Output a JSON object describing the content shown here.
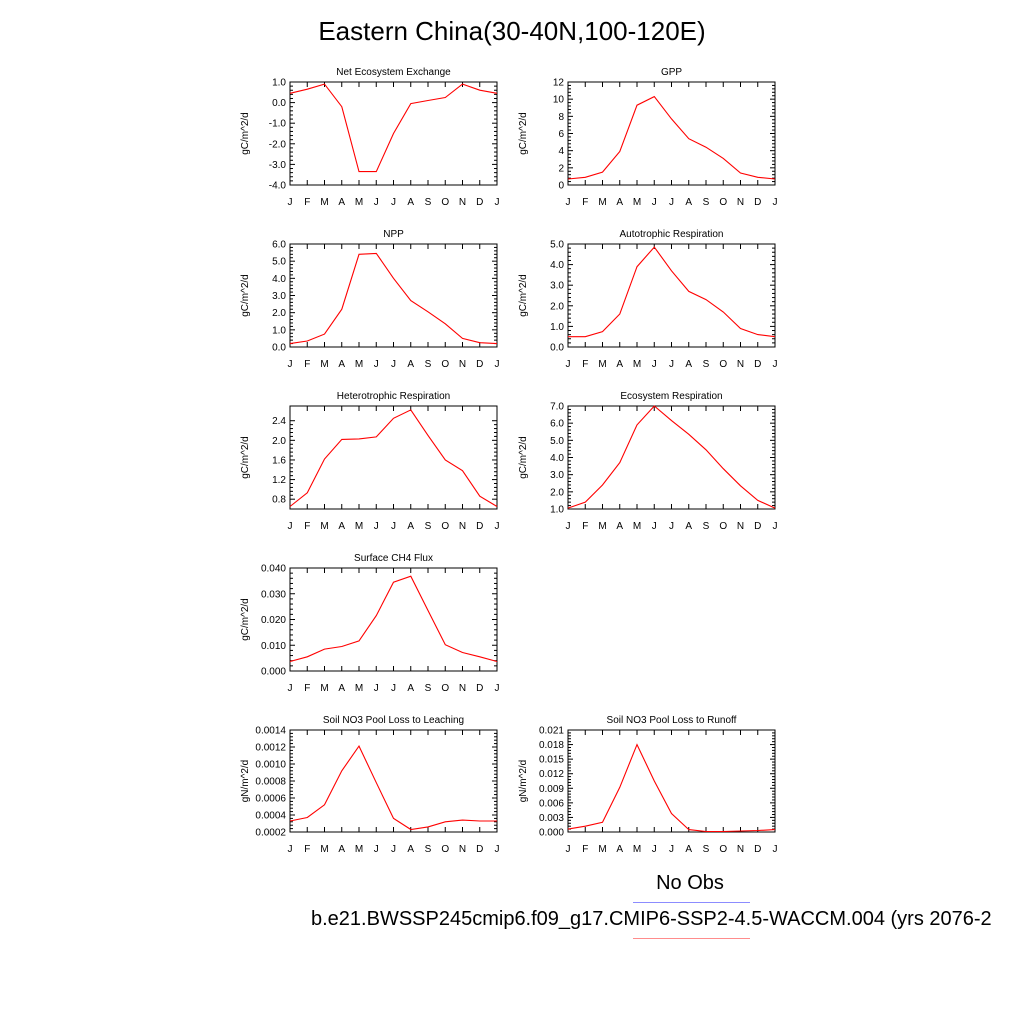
{
  "title": "Eastern China(30-40N,100-120E)",
  "legend": {
    "obs_label": "No Obs",
    "case_label": "b.e21.BWSSP245cmip6.f09_g17.CMIP6-SSP2-4.5-WACCM.004 (yrs 2076-2",
    "obs_color": "#8c8cff",
    "case_color": "#ff8c8c"
  },
  "colors": {
    "line": "#ff0000",
    "axis": "#000000"
  },
  "months": [
    "J",
    "F",
    "M",
    "A",
    "M",
    "J",
    "J",
    "A",
    "S",
    "O",
    "N",
    "D",
    "J"
  ],
  "chart_data": [
    {
      "type": "line",
      "title": "Net Ecosystem Exchange",
      "ylabel": "gC/m^2/d",
      "ylim": [
        -4.0,
        1.0
      ],
      "yticks": [
        -4.0,
        -3.0,
        -2.0,
        -1.0,
        0.0,
        1.0
      ],
      "ytick_labels": [
        "-4.0",
        "-3.0",
        "-2.0",
        "-1.0",
        "0.0",
        "1.0"
      ],
      "values": [
        0.45,
        0.65,
        0.9,
        -0.2,
        -3.35,
        -3.35,
        -1.5,
        -0.05,
        0.1,
        0.25,
        0.9,
        0.6,
        0.45
      ]
    },
    {
      "type": "line",
      "title": "GPP",
      "ylabel": "gC/m^2/d",
      "ylim": [
        0,
        12
      ],
      "yticks": [
        0,
        2,
        4,
        6,
        8,
        10,
        12
      ],
      "ytick_labels": [
        "0",
        "2",
        "4",
        "6",
        "8",
        "10",
        "12"
      ],
      "values": [
        0.7,
        0.9,
        1.5,
        3.9,
        9.3,
        10.3,
        7.7,
        5.4,
        4.4,
        3.1,
        1.4,
        0.9,
        0.7
      ]
    },
    {
      "type": "line",
      "title": "NPP",
      "ylabel": "gC/m^2/d",
      "ylim": [
        0.0,
        6.0
      ],
      "yticks": [
        0.0,
        1.0,
        2.0,
        3.0,
        4.0,
        5.0,
        6.0
      ],
      "ytick_labels": [
        "0.0",
        "1.0",
        "2.0",
        "3.0",
        "4.0",
        "5.0",
        "6.0"
      ],
      "values": [
        0.2,
        0.35,
        0.75,
        2.2,
        5.4,
        5.45,
        4.0,
        2.7,
        2.05,
        1.35,
        0.5,
        0.25,
        0.2
      ]
    },
    {
      "type": "line",
      "title": "Autotrophic Respiration",
      "ylabel": "gC/m^2/d",
      "ylim": [
        0.0,
        5.0
      ],
      "yticks": [
        0.0,
        1.0,
        2.0,
        3.0,
        4.0,
        5.0
      ],
      "ytick_labels": [
        "0.0",
        "1.0",
        "2.0",
        "3.0",
        "4.0",
        "5.0"
      ],
      "values": [
        0.5,
        0.5,
        0.75,
        1.6,
        3.9,
        4.85,
        3.7,
        2.7,
        2.3,
        1.7,
        0.9,
        0.6,
        0.5
      ]
    },
    {
      "type": "line",
      "title": "Heterotrophic Respiration",
      "ylabel": "gC/m^2/d",
      "ylim": [
        0.6,
        2.7
      ],
      "yticks": [
        0.8,
        1.2,
        1.6,
        2.0,
        2.4
      ],
      "ytick_labels": [
        "0.8",
        "1.2",
        "1.6",
        "2.0",
        "2.4"
      ],
      "values": [
        0.65,
        0.93,
        1.62,
        2.02,
        2.03,
        2.07,
        2.45,
        2.62,
        2.1,
        1.6,
        1.38,
        0.86,
        0.65
      ]
    },
    {
      "type": "line",
      "title": "Ecosystem Respiration",
      "ylabel": "gC/m^2/d",
      "ylim": [
        1.0,
        7.0
      ],
      "yticks": [
        1.0,
        2.0,
        3.0,
        4.0,
        5.0,
        6.0,
        7.0
      ],
      "ytick_labels": [
        "1.0",
        "2.0",
        "3.0",
        "4.0",
        "5.0",
        "6.0",
        "7.0"
      ],
      "values": [
        1.05,
        1.4,
        2.4,
        3.7,
        5.9,
        7.0,
        6.15,
        5.35,
        4.45,
        3.35,
        2.35,
        1.5,
        1.05
      ]
    },
    {
      "type": "line",
      "title": "Surface CH4 Flux",
      "ylabel": "gC/m^2/d",
      "ylim": [
        0.0,
        0.04
      ],
      "yticks": [
        0.0,
        0.01,
        0.02,
        0.03,
        0.04
      ],
      "ytick_labels": [
        "0.000",
        "0.010",
        "0.020",
        "0.030",
        "0.040"
      ],
      "values": [
        0.0037,
        0.0055,
        0.0085,
        0.0095,
        0.0117,
        0.0215,
        0.0345,
        0.0368,
        0.0235,
        0.0102,
        0.0072,
        0.0055,
        0.0037
      ]
    },
    {
      "type": "line",
      "title": "Soil NO3 Pool Loss to Leaching",
      "ylabel": "gN/m^2/d",
      "ylim": [
        0.0002,
        0.0014
      ],
      "yticks": [
        0.0002,
        0.0004,
        0.0006,
        0.0008,
        0.001,
        0.0012,
        0.0014
      ],
      "ytick_labels": [
        "0.0002",
        "0.0004",
        "0.0006",
        "0.0008",
        "0.0010",
        "0.0012",
        "0.0014"
      ],
      "values": [
        0.00033,
        0.00037,
        0.00052,
        0.00092,
        0.00121,
        0.00078,
        0.00036,
        0.00023,
        0.00026,
        0.00032,
        0.00034,
        0.00033,
        0.00033
      ]
    },
    {
      "type": "line",
      "title": "Soil NO3 Pool Loss to Runoff",
      "ylabel": "gN/m^2/d",
      "ylim": [
        0.0,
        0.021
      ],
      "yticks": [
        0.0,
        0.003,
        0.006,
        0.009,
        0.012,
        0.015,
        0.018,
        0.021
      ],
      "ytick_labels": [
        "0.000",
        "0.003",
        "0.006",
        "0.009",
        "0.012",
        "0.015",
        "0.018",
        "0.021"
      ],
      "values": [
        0.0006,
        0.0012,
        0.002,
        0.0092,
        0.018,
        0.0105,
        0.0038,
        0.0005,
        0.0001,
        0.0001,
        0.0002,
        0.0003,
        0.0005
      ]
    }
  ]
}
